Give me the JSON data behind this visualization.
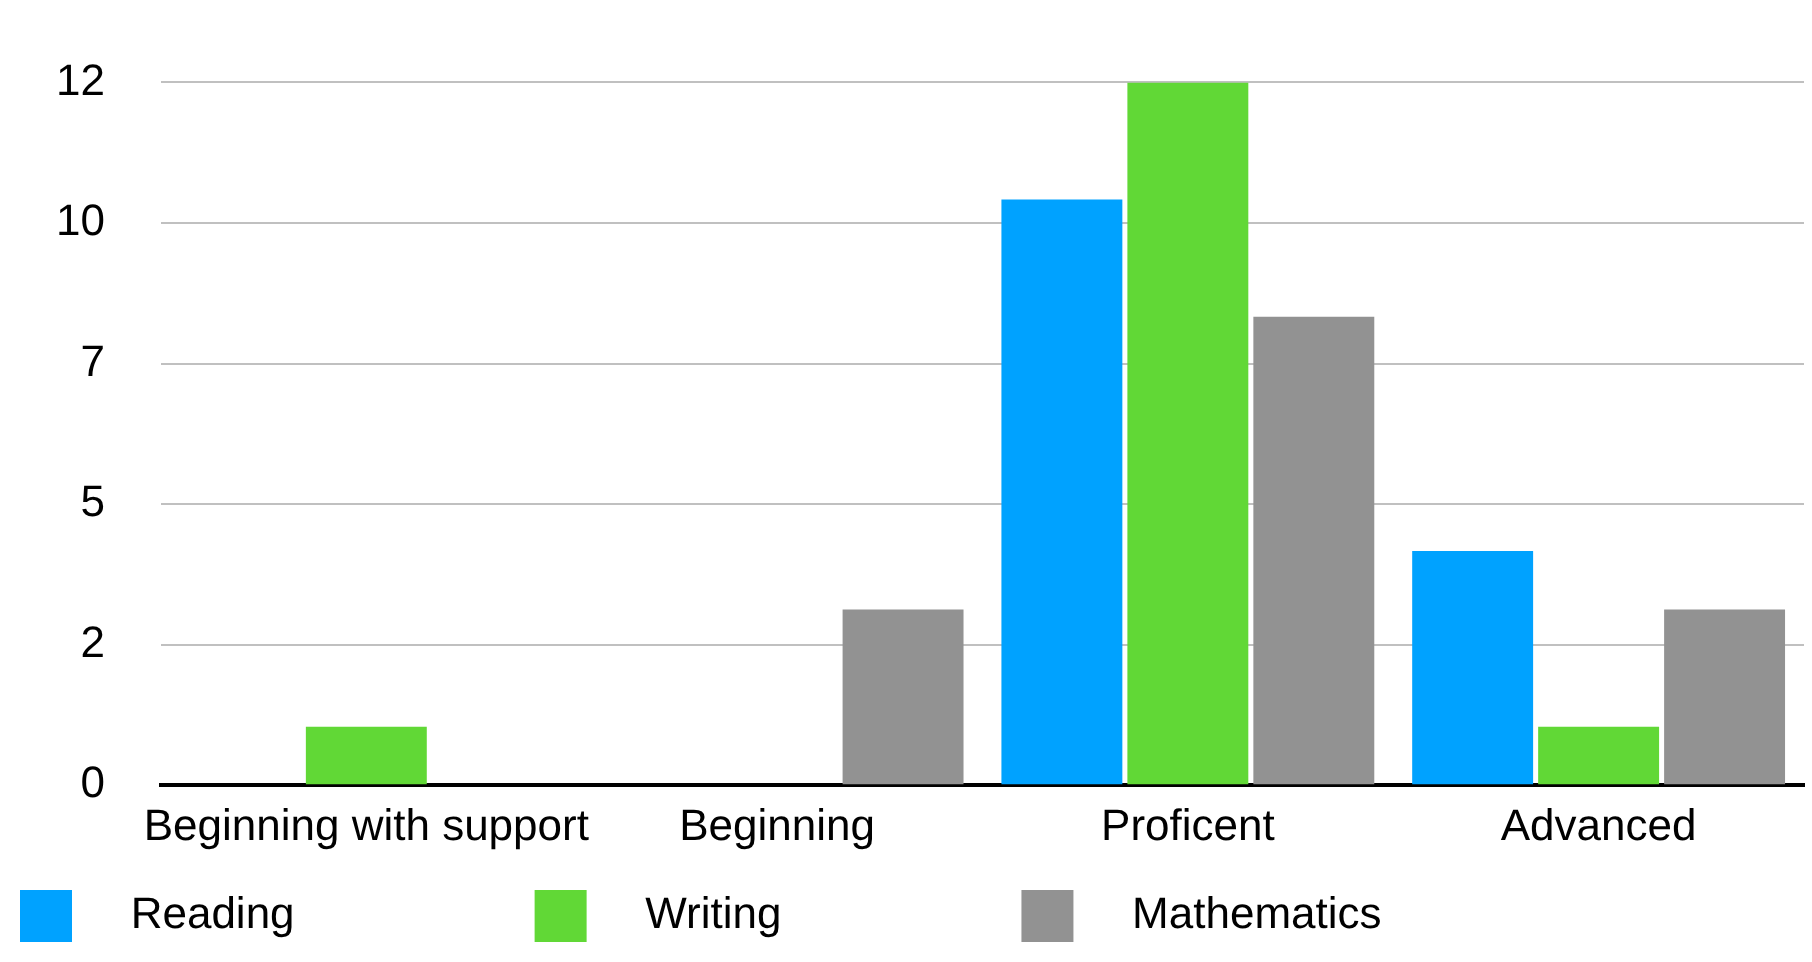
{
  "chart_data": {
    "type": "bar",
    "categories": [
      "Beginning with support",
      "Beginning",
      "Proficent",
      "Advanced"
    ],
    "series": [
      {
        "name": "Reading",
        "color": "#00a2ff",
        "values": [
          0,
          0,
          10,
          4
        ]
      },
      {
        "name": "Writing",
        "color": "#61d836",
        "values": [
          1,
          0,
          12,
          1
        ]
      },
      {
        "name": "Mathematics",
        "color": "#929292",
        "values": [
          0,
          3,
          8,
          3
        ]
      }
    ],
    "ylim": [
      0,
      12
    ],
    "yticks": [
      0,
      {
        "value": 2.4,
        "label": "2"
      },
      {
        "value": 4.8,
        "label": "5"
      },
      {
        "value": 7.2,
        "label": "7"
      },
      {
        "value": 9.6,
        "label": "10"
      },
      12
    ],
    "grid": "y",
    "legend": "bottom"
  }
}
